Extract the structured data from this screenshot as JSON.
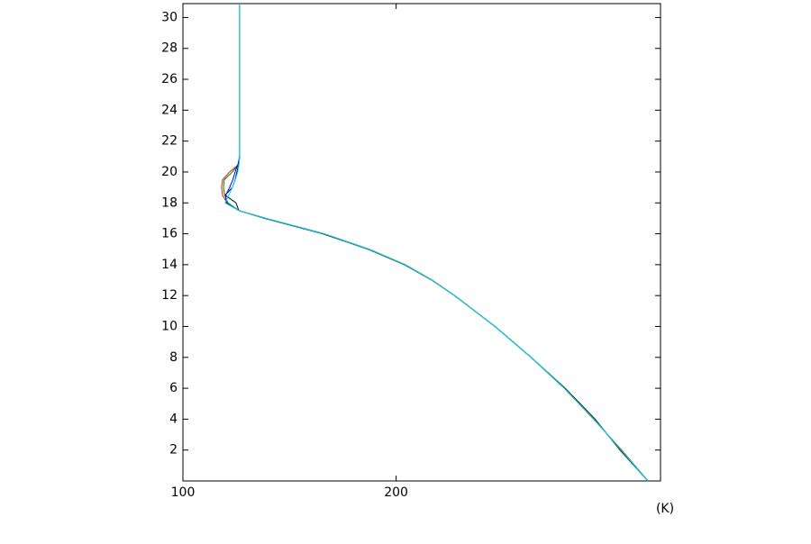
{
  "chart_data": {
    "type": "line",
    "x_label": "(K)",
    "xlim": [
      100,
      324
    ],
    "xticks": [
      100,
      200
    ],
    "ylim": [
      0,
      30.9
    ],
    "yticks": [
      2,
      4,
      6,
      8,
      10,
      12,
      14,
      16,
      18,
      20,
      22,
      24,
      26,
      28,
      30
    ],
    "y": [
      0,
      2,
      4,
      6,
      8,
      10,
      12,
      13,
      14,
      15,
      16,
      17,
      17.5,
      18,
      18.5,
      19,
      19.5,
      20,
      20.5,
      21,
      22,
      25,
      30.9
    ],
    "series": [
      {
        "color": "#000000",
        "values": [
          318.1,
          305.0,
          293.3,
          279.3,
          263.3,
          246.4,
          227.4,
          216.7,
          203.8,
          186.8,
          165.5,
          138.2,
          126.2,
          124.9,
          119.8,
          123.2,
          124.5,
          125.3,
          126.2,
          126.6,
          126.6,
          126.6,
          126.6
        ]
      },
      {
        "color": "#cc2200",
        "values": [
          318.1,
          305.8,
          292.6,
          278.9,
          263.3,
          246.4,
          227.4,
          216.9,
          204.2,
          187.3,
          166.2,
          138.8,
          126.2,
          120.7,
          118.6,
          118.1,
          118.6,
          121.9,
          126.2,
          126.6,
          126.6,
          126.6,
          126.6
        ]
      },
      {
        "color": "#008000",
        "values": [
          318.1,
          305.6,
          292.8,
          278.9,
          263.3,
          246.4,
          227.4,
          216.9,
          204.2,
          187.3,
          166.2,
          138.8,
          126.2,
          121.1,
          119.6,
          119.0,
          119.4,
          123.2,
          126.2,
          126.6,
          126.6,
          126.6,
          126.6
        ]
      },
      {
        "color": "#0000ff",
        "values": [
          318.1,
          305.5,
          292.8,
          278.9,
          263.3,
          246.4,
          227.4,
          216.9,
          204.2,
          187.3,
          166.2,
          138.8,
          126.2,
          120.3,
          120.1,
          121.9,
          123.4,
          124.5,
          125.8,
          126.6,
          126.6,
          126.6,
          126.6
        ]
      },
      {
        "color": "#00dddd",
        "values": [
          318.1,
          305.5,
          292.8,
          278.9,
          263.3,
          246.4,
          227.4,
          216.9,
          204.2,
          187.3,
          166.2,
          138.8,
          126.2,
          119.8,
          121.5,
          123.2,
          124.6,
          125.7,
          126.3,
          126.6,
          126.6,
          126.6,
          126.6
        ]
      }
    ]
  }
}
